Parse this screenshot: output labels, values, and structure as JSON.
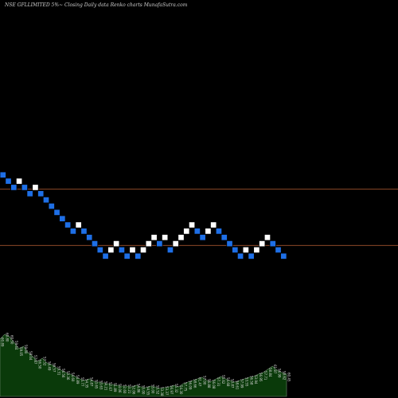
{
  "chart_data": {
    "type": "renko",
    "title": "NSE GFLLIMITED 5%~  Closing Daily data  Renko  charts MunafaSutra.com",
    "subtitle": "",
    "xlabel": "",
    "ylabel": "",
    "brick_step": 1,
    "bricks": [
      {
        "level": 0,
        "dir": "down"
      },
      {
        "level": -1,
        "dir": "down"
      },
      {
        "level": -2,
        "dir": "down"
      },
      {
        "level": -1,
        "dir": "up"
      },
      {
        "level": -2,
        "dir": "down"
      },
      {
        "level": -3,
        "dir": "down"
      },
      {
        "level": -2,
        "dir": "up"
      },
      {
        "level": -3,
        "dir": "down"
      },
      {
        "level": -4,
        "dir": "down"
      },
      {
        "level": -5,
        "dir": "down"
      },
      {
        "level": -6,
        "dir": "down"
      },
      {
        "level": -7,
        "dir": "down"
      },
      {
        "level": -8,
        "dir": "down"
      },
      {
        "level": -9,
        "dir": "down"
      },
      {
        "level": -8,
        "dir": "up"
      },
      {
        "level": -9,
        "dir": "down"
      },
      {
        "level": -10,
        "dir": "down"
      },
      {
        "level": -11,
        "dir": "down"
      },
      {
        "level": -12,
        "dir": "down"
      },
      {
        "level": -13,
        "dir": "down"
      },
      {
        "level": -12,
        "dir": "up"
      },
      {
        "level": -11,
        "dir": "up"
      },
      {
        "level": -12,
        "dir": "down"
      },
      {
        "level": -13,
        "dir": "down"
      },
      {
        "level": -12,
        "dir": "up"
      },
      {
        "level": -13,
        "dir": "down"
      },
      {
        "level": -12,
        "dir": "up"
      },
      {
        "level": -11,
        "dir": "up"
      },
      {
        "level": -10,
        "dir": "up"
      },
      {
        "level": -11,
        "dir": "down"
      },
      {
        "level": -10,
        "dir": "up"
      },
      {
        "level": -12,
        "dir": "down"
      },
      {
        "level": -11,
        "dir": "up"
      },
      {
        "level": -10,
        "dir": "up"
      },
      {
        "level": -9,
        "dir": "up"
      },
      {
        "level": -8,
        "dir": "up"
      },
      {
        "level": -9,
        "dir": "down"
      },
      {
        "level": -10,
        "dir": "down"
      },
      {
        "level": -9,
        "dir": "up"
      },
      {
        "level": -8,
        "dir": "up"
      },
      {
        "level": -9,
        "dir": "down"
      },
      {
        "level": -10,
        "dir": "down"
      },
      {
        "level": -11,
        "dir": "down"
      },
      {
        "level": -12,
        "dir": "down"
      },
      {
        "level": -13,
        "dir": "down"
      },
      {
        "level": -12,
        "dir": "up"
      },
      {
        "level": -13,
        "dir": "down"
      },
      {
        "level": -12,
        "dir": "up"
      },
      {
        "level": -11,
        "dir": "up"
      },
      {
        "level": -10,
        "dir": "up"
      },
      {
        "level": -11,
        "dir": "down"
      },
      {
        "level": -12,
        "dir": "down"
      },
      {
        "level": -13,
        "dir": "down"
      }
    ],
    "reference_levels": [
      -2,
      -11
    ],
    "volume_labels": [
      "60.89",
      "60.80",
      "60.50",
      "59.64",
      "59.05",
      "59.00",
      "58.04",
      "57.87",
      "56.50",
      "57.32",
      "56.49",
      "56.57",
      "55.31",
      "56.56",
      "53.36",
      "54.60",
      "54.89",
      "55.77",
      "54.35",
      "54.87",
      "53.65",
      "53.63",
      "54.21",
      "52.67",
      "51.89",
      "54.06",
      "52.60",
      "53.21",
      "52.06",
      "54.86",
      "55.00",
      "54.55",
      "55.00",
      "55.52",
      "53.38",
      "53.37",
      "56.97",
      "55.32",
      "54.30",
      "57.75",
      "56.09",
      "58.66",
      "61.47",
      "57.00",
      "56.88",
      "56.08",
      "57.31",
      "55.62",
      "54.68",
      "53.87",
      "58.61",
      "57.99",
      "53.55",
      "56.58",
      "53.94",
      "56.95",
      "57.71",
      "58.84",
      "61.87",
      "56.99",
      "58.62",
      "60.45"
    ],
    "volume_heights": [
      0.72,
      0.78,
      0.75,
      0.68,
      0.6,
      0.63,
      0.55,
      0.5,
      0.44,
      0.48,
      0.42,
      0.4,
      0.36,
      0.33,
      0.3,
      0.28,
      0.25,
      0.22,
      0.2,
      0.22,
      0.19,
      0.18,
      0.17,
      0.16,
      0.15,
      0.14,
      0.13,
      0.13,
      0.12,
      0.14,
      0.12,
      0.11,
      0.13,
      0.12,
      0.1,
      0.11,
      0.12,
      0.14,
      0.12,
      0.16,
      0.18,
      0.2,
      0.22,
      0.24,
      0.2,
      0.19,
      0.22,
      0.25,
      0.22,
      0.2,
      0.18,
      0.2,
      0.22,
      0.24,
      0.25,
      0.28,
      0.3,
      0.34,
      0.38,
      0.33,
      0.3,
      0.28
    ],
    "colors": {
      "background": "#000000",
      "up_brick": "#ffffff",
      "down_brick": "#1e6fe6",
      "brick_border": "#000000",
      "reference_line": "#a0522d",
      "volume_fill": "#0a3a0a",
      "volume_line": "#6e8a6e",
      "volume_text": "#d8d8d8",
      "title_text": "#cfcfcf"
    }
  }
}
